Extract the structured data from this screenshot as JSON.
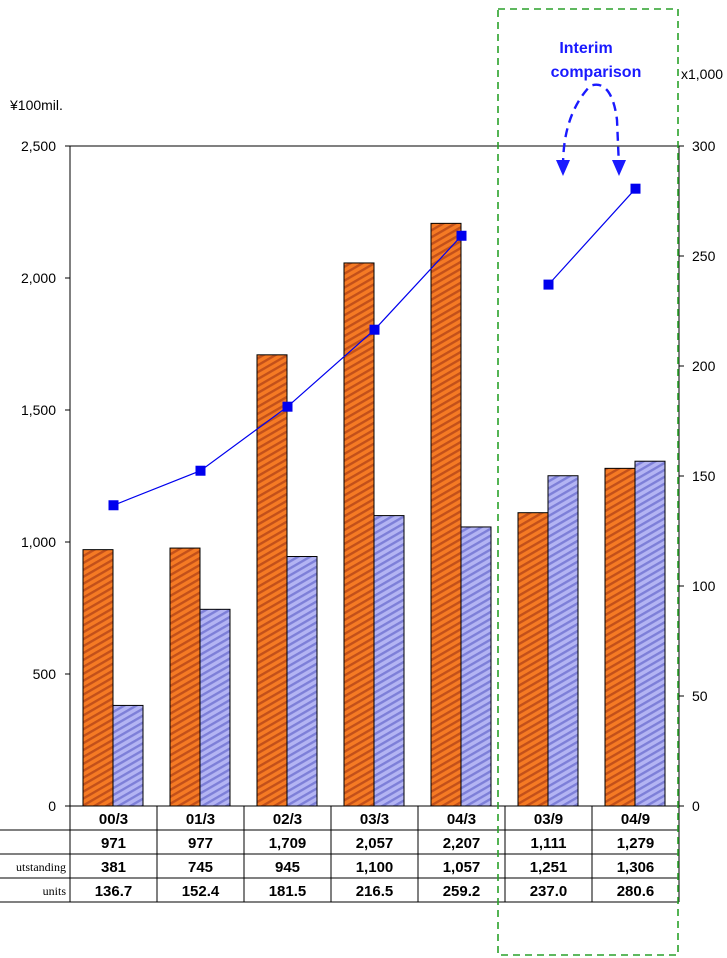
{
  "chart_data": {
    "type": "bar",
    "title": "",
    "left_axis": {
      "unit_label": "¥100mil.",
      "ylim": [
        0,
        2500
      ],
      "ticks": [
        "0",
        "500",
        "1,000",
        "1,500",
        "2,000",
        "2,500"
      ]
    },
    "right_axis": {
      "unit_label": "x1,000",
      "ylim": [
        0,
        300
      ],
      "ticks": [
        "0",
        "50",
        "100",
        "150",
        "200",
        "250",
        "300"
      ]
    },
    "categories": [
      "00/3",
      "01/3",
      "02/3",
      "03/3",
      "04/3",
      "03/9",
      "04/9"
    ],
    "series": [
      {
        "kind": "bar",
        "axis": "left",
        "color": "#f07a2a",
        "values": [
          971,
          977,
          1709,
          2057,
          2207,
          1111,
          1279
        ],
        "table_labels": [
          "971",
          "977",
          "1,709",
          "2,057",
          "2,207",
          "1,111",
          "1,279"
        ]
      },
      {
        "kind": "bar",
        "axis": "left",
        "color": "#a7a8f0",
        "values": [
          381,
          745,
          945,
          1100,
          1057,
          1251,
          1306
        ],
        "table_labels": [
          "381",
          "745",
          "945",
          "1,100",
          "1,057",
          "1,251",
          "1,306"
        ]
      },
      {
        "kind": "line",
        "axis": "right",
        "color": "#0000ee",
        "values": [
          136.7,
          152.4,
          181.5,
          216.5,
          259.2,
          237.0,
          280.6
        ],
        "table_labels": [
          "136.7",
          "152.4",
          "181.5",
          "216.5",
          "259.2",
          "237.0",
          "280.6"
        ]
      }
    ],
    "table_row_labels": [
      "",
      "utstanding",
      "units"
    ],
    "line_segments": [
      [
        0,
        4
      ],
      [
        5,
        6
      ]
    ],
    "annotation": {
      "lines": [
        "Interim",
        "comparison"
      ],
      "color": "#1a1aff",
      "box": "dashed green around 03/9 and 04/9",
      "box_color": "#2aa12a"
    },
    "grid": false,
    "legend": "none"
  }
}
